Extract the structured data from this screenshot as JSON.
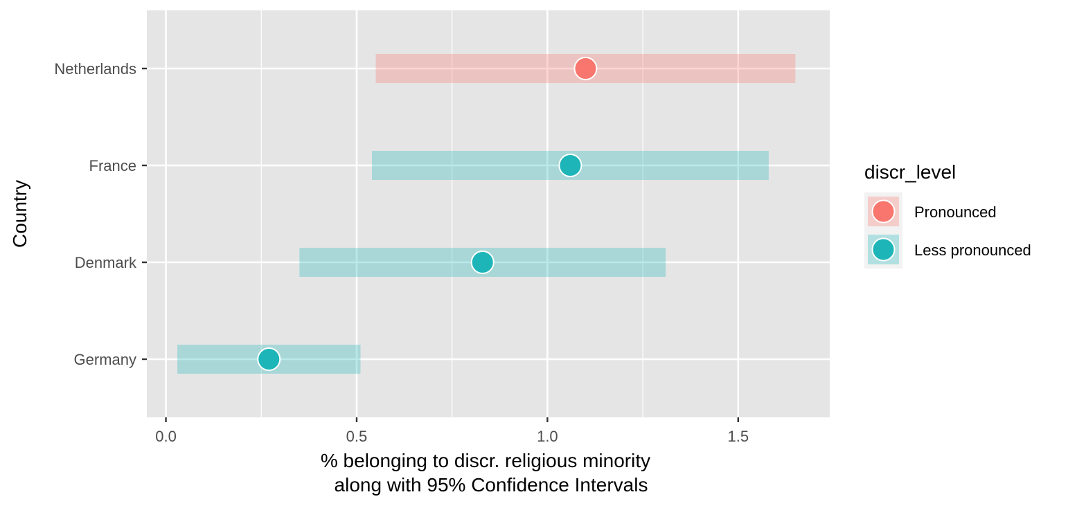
{
  "chart_data": {
    "type": "scatter",
    "title": "",
    "xlabel_lines": [
      "% belonging to discr. religious minority",
      "along with 95% Confidence Intervals"
    ],
    "ylabel": "Country",
    "xlim": [
      -0.05,
      1.74
    ],
    "x_ticks": [
      0.0,
      0.5,
      1.0,
      1.5
    ],
    "x_tick_labels": [
      "0.0",
      "0.5",
      "1.0",
      "1.5"
    ],
    "categories": [
      "Netherlands",
      "France",
      "Denmark",
      "Germany"
    ],
    "grid": true,
    "legend": {
      "title": "discr_level",
      "placement": "right",
      "entries": [
        {
          "label": "Pronounced",
          "color": "#F8766D"
        },
        {
          "label": "Less pronounced",
          "color": "#1DB5B8"
        }
      ]
    },
    "points": [
      {
        "country": "Netherlands",
        "group": "Pronounced",
        "estimate": 1.1,
        "ci_low": 0.55,
        "ci_high": 1.65
      },
      {
        "country": "France",
        "group": "Less pronounced",
        "estimate": 1.06,
        "ci_low": 0.54,
        "ci_high": 1.58
      },
      {
        "country": "Denmark",
        "group": "Less pronounced",
        "estimate": 0.83,
        "ci_low": 0.35,
        "ci_high": 1.31
      },
      {
        "country": "Germany",
        "group": "Less pronounced",
        "estimate": 0.27,
        "ci_low": 0.03,
        "ci_high": 0.51
      }
    ],
    "colors": {
      "panel_background": "#E5E5E5",
      "grid_line": "#FFFFFF",
      "pronounced": "#F8766D",
      "less_pronounced": "#1DB5B8",
      "tick_color": "#333333"
    }
  }
}
